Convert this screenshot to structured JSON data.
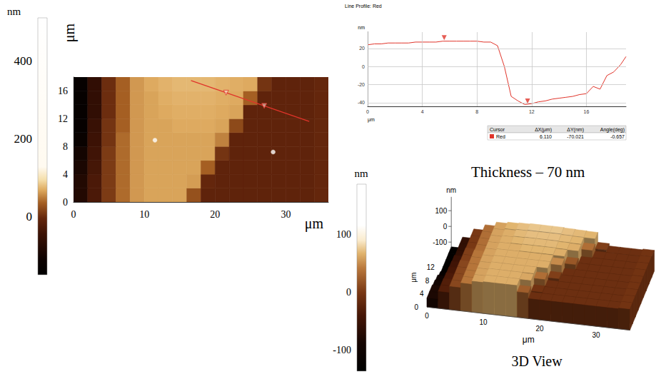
{
  "chart_data": [
    {
      "type": "heatmap",
      "x_label": "μm",
      "y_label": "μm",
      "xlim": [
        0,
        36
      ],
      "ylim": [
        0,
        18
      ],
      "xticks": [
        0,
        10,
        20,
        30
      ],
      "yticks": [
        0,
        4,
        8,
        12,
        16
      ],
      "x": [
        1,
        3,
        5,
        7,
        9,
        11,
        13,
        15,
        17,
        19,
        21,
        23,
        25,
        27,
        29,
        31,
        33,
        35
      ],
      "y": [
        1,
        3,
        5,
        7,
        9,
        11,
        13,
        15,
        17
      ],
      "cells": [
        [
          -80,
          -30,
          10,
          40,
          60,
          65,
          65,
          65,
          25,
          -10,
          -10,
          -10,
          -10,
          -10,
          -10,
          -10,
          -10,
          -5
        ],
        [
          -80,
          -30,
          10,
          40,
          60,
          65,
          65,
          65,
          62,
          -5,
          -10,
          -10,
          -10,
          -10,
          -10,
          -10,
          -10,
          -5
        ],
        [
          -90,
          -35,
          10,
          40,
          60,
          65,
          65,
          65,
          65,
          35,
          -10,
          -10,
          -10,
          -10,
          -10,
          -10,
          -10,
          -5
        ],
        [
          -100,
          -40,
          10,
          40,
          60,
          65,
          65,
          65,
          65,
          65,
          5,
          -10,
          -10,
          -10,
          -10,
          -10,
          -10,
          -5
        ],
        [
          -120,
          -45,
          5,
          40,
          60,
          65,
          65,
          65,
          65,
          65,
          50,
          -10,
          -10,
          -10,
          -10,
          -10,
          -10,
          -5
        ],
        [
          -130,
          -50,
          5,
          35,
          60,
          65,
          65,
          68,
          68,
          68,
          65,
          20,
          -10,
          -10,
          -10,
          -10,
          -10,
          -5
        ],
        [
          -130,
          -60,
          0,
          35,
          60,
          65,
          68,
          70,
          70,
          70,
          68,
          65,
          -10,
          -10,
          -10,
          -10,
          -10,
          -5
        ],
        [
          -130,
          -60,
          0,
          35,
          60,
          65,
          70,
          72,
          72,
          72,
          70,
          68,
          35,
          -10,
          -10,
          -10,
          -10,
          -5
        ],
        [
          -130,
          -60,
          0,
          35,
          60,
          68,
          72,
          75,
          75,
          75,
          72,
          70,
          68,
          5,
          -10,
          -10,
          -10,
          -5
        ]
      ],
      "colorbar": {
        "label": "nm",
        "range": [
          -150,
          510
        ],
        "ticks": [
          0,
          200,
          400
        ]
      },
      "particles": {
        "x": [
          11.5,
          28.2
        ],
        "y": [
          8.9,
          7.2
        ]
      },
      "profile": {
        "color": "#e0342a",
        "x": [
          16.6,
          33.3
        ],
        "y": [
          17.5,
          11.6
        ]
      }
    },
    {
      "type": "line",
      "title": "Line Profile: Red",
      "x_label": "μm",
      "y_label": "nm",
      "xlim": [
        0,
        18.9
      ],
      "ylim": [
        -44,
        38
      ],
      "xticks": [
        0,
        4,
        8,
        12,
        16
      ],
      "yticks": [
        -40,
        -20,
        0,
        20
      ],
      "grid": true,
      "color": "#e0342a",
      "x": [
        0,
        0.5,
        1,
        1.5,
        2,
        2.5,
        3,
        3.5,
        4,
        4.5,
        5,
        5.5,
        6,
        6.5,
        7,
        7.5,
        8,
        8.5,
        9,
        9.5,
        10,
        10.5,
        11,
        11.5,
        12,
        12.5,
        13,
        13.5,
        14,
        14.5,
        15,
        15.5,
        16,
        16.5,
        17,
        17.5,
        18,
        18.5,
        18.9
      ],
      "values": [
        24,
        25,
        25,
        26,
        26,
        26,
        26,
        27,
        27,
        27,
        27,
        28,
        28,
        28,
        28,
        28,
        28,
        27,
        27,
        23,
        0,
        -33,
        -38,
        -42,
        -41,
        -39,
        -38,
        -36,
        -35,
        -34,
        -33,
        -31,
        -30,
        -22,
        -25,
        -10,
        -6,
        2,
        11
      ],
      "cursors": {
        "x": [
          5.6,
          11.7
        ],
        "y": [
          28,
          -42
        ]
      },
      "table": {
        "header": [
          "Cursor",
          "ΔX(μm)",
          "ΔY(nm)",
          "Angle(deg)"
        ],
        "rows": [
          [
            "Red",
            "6.110",
            "-70.021",
            "-0.657"
          ]
        ]
      },
      "annotation": "Thickness – 70 nm"
    },
    {
      "type": "surface3d",
      "title": "3D View",
      "x_label": "μm",
      "y_label": "μm",
      "z_label": "nm",
      "xlim": [
        0,
        36
      ],
      "ylim": [
        0,
        18
      ],
      "zlim": [
        -137,
        188
      ],
      "xticks": [
        0,
        10,
        20,
        30
      ],
      "yticks": [
        0,
        4,
        8,
        12
      ],
      "zticks": [
        -100,
        0,
        100
      ],
      "x": [
        1,
        3,
        5,
        7,
        9,
        11,
        13,
        15,
        17,
        19,
        21,
        23,
        25,
        27,
        29,
        31,
        33,
        35
      ],
      "y": [
        1,
        3,
        5,
        7,
        9,
        11,
        13,
        15,
        17
      ],
      "cells": [
        [
          -80,
          -30,
          10,
          40,
          60,
          65,
          65,
          65,
          25,
          -10,
          -10,
          -10,
          -10,
          -10,
          -10,
          -10,
          -10,
          -5
        ],
        [
          -80,
          -30,
          10,
          40,
          60,
          65,
          65,
          65,
          62,
          -5,
          -10,
          -10,
          -10,
          -10,
          -10,
          -10,
          -10,
          -5
        ],
        [
          -90,
          -35,
          10,
          40,
          60,
          65,
          65,
          65,
          65,
          35,
          -10,
          -10,
          -10,
          -10,
          -10,
          -10,
          -10,
          -5
        ],
        [
          -100,
          -40,
          10,
          40,
          60,
          65,
          65,
          65,
          65,
          65,
          5,
          -10,
          -10,
          -10,
          -10,
          -10,
          -10,
          -5
        ],
        [
          -120,
          -45,
          5,
          40,
          60,
          65,
          65,
          65,
          65,
          65,
          50,
          -10,
          -10,
          -10,
          -10,
          -10,
          -10,
          -5
        ],
        [
          -130,
          -50,
          5,
          35,
          60,
          65,
          65,
          68,
          68,
          68,
          65,
          20,
          -10,
          -10,
          -10,
          -10,
          -10,
          -5
        ],
        [
          -130,
          -60,
          0,
          35,
          60,
          65,
          68,
          70,
          70,
          70,
          68,
          65,
          -10,
          -10,
          -10,
          -10,
          -10,
          -5
        ],
        [
          -130,
          -60,
          0,
          35,
          60,
          65,
          70,
          72,
          72,
          72,
          70,
          68,
          35,
          -10,
          -10,
          -10,
          -10,
          -5
        ],
        [
          -130,
          -60,
          0,
          35,
          60,
          68,
          72,
          75,
          75,
          75,
          72,
          70,
          68,
          5,
          -10,
          -10,
          -10,
          -5
        ]
      ],
      "colorbar": {
        "label": "nm",
        "range": [
          -137,
          188
        ],
        "ticks": [
          -100,
          0,
          100
        ]
      }
    }
  ]
}
